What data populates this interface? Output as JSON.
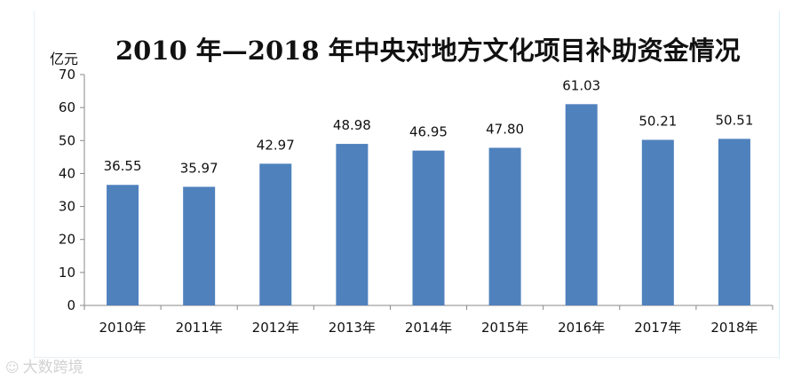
{
  "chart_data": {
    "type": "bar",
    "title": "2010 年—2018 年中央对地方文化项目补助资金情况",
    "ylabel": "亿元",
    "xlabel": "",
    "categories": [
      "2010年",
      "2011年",
      "2012年",
      "2013年",
      "2014年",
      "2015年",
      "2016年",
      "2017年",
      "2018年"
    ],
    "values": [
      36.55,
      35.97,
      42.97,
      48.98,
      46.95,
      47.8,
      61.03,
      50.21,
      50.51
    ],
    "data_labels": [
      "36.55",
      "35.97",
      "42.97",
      "48.98",
      "46.95",
      "47.80",
      "61.03",
      "50.21",
      "50.51"
    ],
    "ylim": [
      0,
      70
    ],
    "yticks": [
      0,
      10,
      20,
      30,
      40,
      50,
      60,
      70
    ],
    "grid": false,
    "legend": "none",
    "bar_color": "#4f81bd"
  },
  "watermark": {
    "icon": "weibo-icon",
    "text": "大数跨境"
  }
}
